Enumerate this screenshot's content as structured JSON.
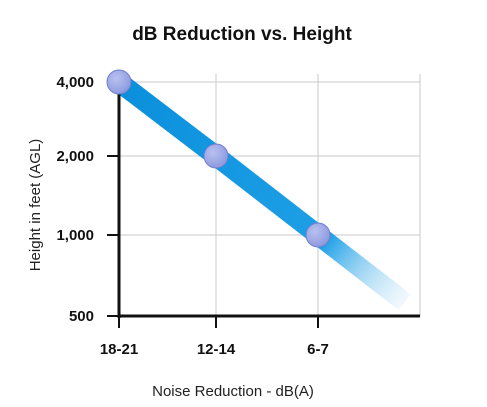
{
  "colors": {
    "band_start": "#0a8fdc",
    "band_end": "#cfe8f8",
    "point_fill": "#8b97dd",
    "point_stroke": "#6f7fd0",
    "grid": "#c9c9c9",
    "axis": "#111111"
  },
  "chart_data": {
    "type": "line",
    "title": "dB Reduction vs. Height",
    "xlabel": "Noise Reduction - dB(A)",
    "ylabel": "Height in feet (AGL)",
    "y_scale": "log",
    "ylim": [
      500,
      4000
    ],
    "yticks": [
      {
        "value": 500,
        "label": "500"
      },
      {
        "value": 1000,
        "label": "1,000"
      },
      {
        "value": 2000,
        "label": "2,000"
      },
      {
        "value": 4000,
        "label": "4,000"
      }
    ],
    "categories": [
      "18-21",
      "12-14",
      "6-7"
    ],
    "series": [
      {
        "values": [
          4000,
          2000,
          1000
        ]
      }
    ],
    "grid": true,
    "legend": "none"
  }
}
